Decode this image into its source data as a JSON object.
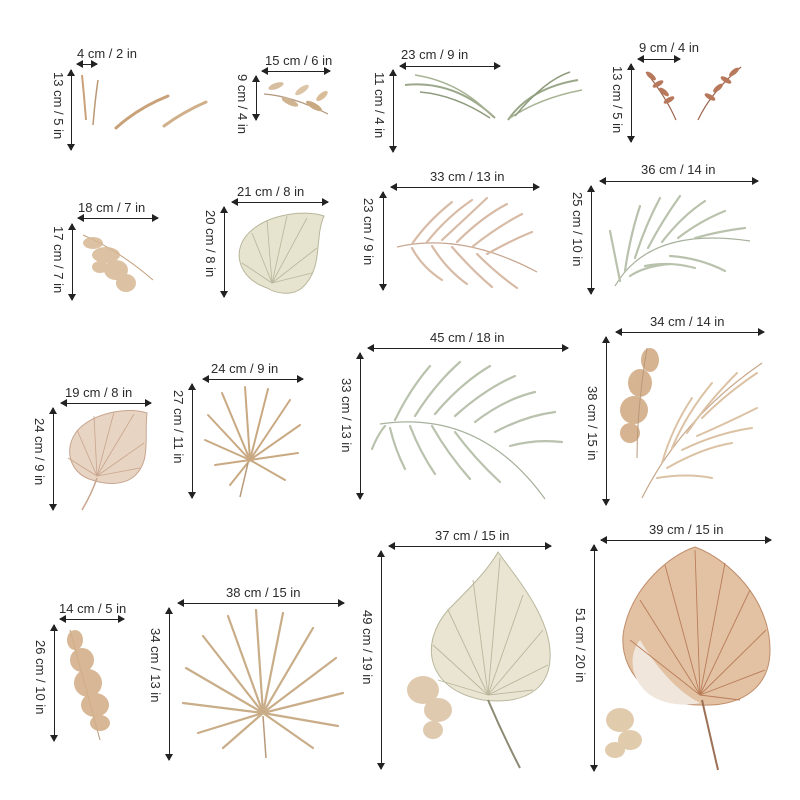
{
  "colors": {
    "line": "#222222",
    "sage": "#9aa788",
    "beige": "#d8c2a3",
    "tan": "#c9a27a",
    "terracotta": "#b8785c",
    "cream": "#e9e3cf"
  },
  "items": [
    {
      "name": "strokes-small",
      "w": "4 cm / 2 in",
      "h": "13 cm / 5 in",
      "icon": "grass-blades"
    },
    {
      "name": "sprig-tan",
      "w": "15 cm / 6 in",
      "h": "9 cm / 4 in",
      "icon": "leaf-sprig"
    },
    {
      "name": "grass-sage",
      "w": "23 cm / 9 in",
      "h": "11 cm / 4 in",
      "icon": "grass-sweep"
    },
    {
      "name": "sprig-terracotta",
      "w": "9 cm / 4 in",
      "h": "13 cm / 5 in",
      "icon": "terracotta-sprig"
    },
    {
      "name": "pampas-small",
      "w": "18 cm / 7 in",
      "h": "17 cm / 7 in",
      "icon": "pampas"
    },
    {
      "name": "fan-palm-cream",
      "w": "21 cm / 8 in",
      "h": "20 cm / 8 in",
      "icon": "fan-palm"
    },
    {
      "name": "frond-blush",
      "w": "33 cm / 13 in",
      "h": "23 cm / 9 in",
      "icon": "palm-frond"
    },
    {
      "name": "frond-sage",
      "w": "36 cm / 14 in",
      "h": "25 cm / 10 in",
      "icon": "palm-frond"
    },
    {
      "name": "fan-palm-blush",
      "w": "19 cm / 8 in",
      "h": "24 cm / 9 in",
      "icon": "fan-palm"
    },
    {
      "name": "spiky-palm-tan",
      "w": "24 cm / 9 in",
      "h": "27 cm / 11 in",
      "icon": "spiky-palm"
    },
    {
      "name": "frond-sage-large",
      "w": "45 cm / 18 in",
      "h": "33 cm / 13 in",
      "icon": "palm-frond"
    },
    {
      "name": "pampas-frond",
      "w": "34 cm / 14 in",
      "h": "38 cm / 15 in",
      "icon": "pampas-frond"
    },
    {
      "name": "pampas-tall",
      "w": "14 cm / 5 in",
      "h": "26 cm / 10 in",
      "icon": "pampas"
    },
    {
      "name": "spiky-palm-large",
      "w": "38 cm / 15 in",
      "h": "34 cm / 13 in",
      "icon": "spiky-palm"
    },
    {
      "name": "fan-palm-cream-large",
      "w": "37 cm / 15 in",
      "h": "49 cm / 19 in",
      "icon": "fan-palm"
    },
    {
      "name": "fan-palm-terracotta-large",
      "w": "39 cm / 15 in",
      "h": "51 cm / 20 in",
      "icon": "fan-palm"
    }
  ]
}
